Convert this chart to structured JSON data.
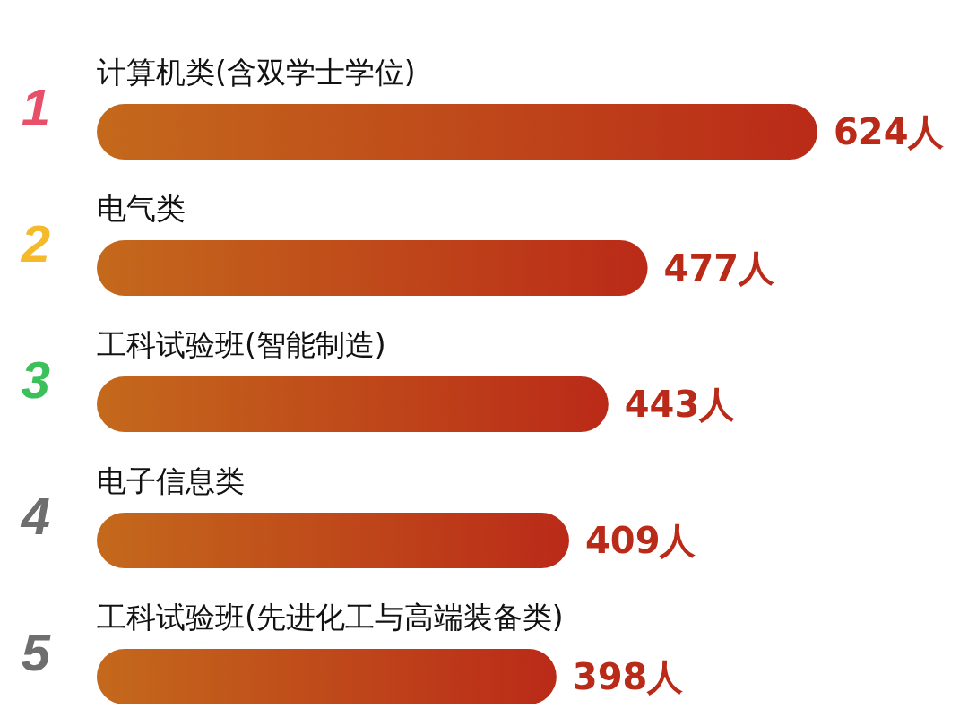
{
  "chart_data": {
    "type": "bar",
    "orientation": "horizontal",
    "categories": [
      "计算机类(含双学士学位)",
      "电气类",
      "工科试验班(智能制造)",
      "电子信息类",
      "工科试验班(先进化工与高端装备类)"
    ],
    "values": [
      624,
      477,
      443,
      409,
      398
    ],
    "color": "#ba2a18",
    "value_labels": [
      "624人",
      "477人",
      "443人",
      "409人",
      "398人"
    ],
    "annotations": [
      "1",
      "2",
      "3",
      "4",
      "5"
    ]
  }
}
